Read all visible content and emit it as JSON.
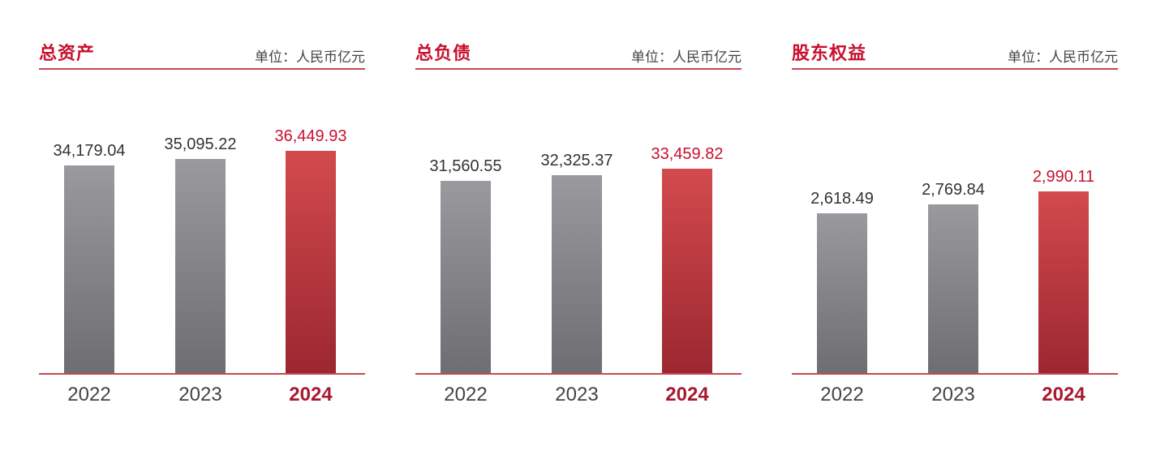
{
  "colors": {
    "accent": "#c8102e",
    "grey_bar_top": "#9a9a9e",
    "grey_bar_bottom": "#6e6e72",
    "red_bar_top": "#d24a4d",
    "red_bar_bottom": "#9c2730",
    "baseline": "#c9474e",
    "label_text": "#333333"
  },
  "chart_data": [
    {
      "type": "bar",
      "title": "总资产",
      "unit": "单位：人民币亿元",
      "categories": [
        "2022",
        "2023",
        "2024"
      ],
      "values": [
        34179.04,
        35095.22,
        36449.93
      ],
      "value_labels": [
        "34,179.04",
        "35,095.22",
        "36,449.93"
      ],
      "highlight_index": 2
    },
    {
      "type": "bar",
      "title": "总负债",
      "unit": "单位：人民币亿元",
      "categories": [
        "2022",
        "2023",
        "2024"
      ],
      "values": [
        31560.55,
        32325.37,
        33459.82
      ],
      "value_labels": [
        "31,560.55",
        "32,325.37",
        "33,459.82"
      ],
      "highlight_index": 2
    },
    {
      "type": "bar",
      "title": "股东权益",
      "unit": "单位：人民币亿元",
      "categories": [
        "2022",
        "2023",
        "2024"
      ],
      "values": [
        2618.49,
        2769.84,
        2990.11
      ],
      "value_labels": [
        "2,618.49",
        "2,769.84",
        "2,990.11"
      ],
      "highlight_index": 2
    }
  ]
}
